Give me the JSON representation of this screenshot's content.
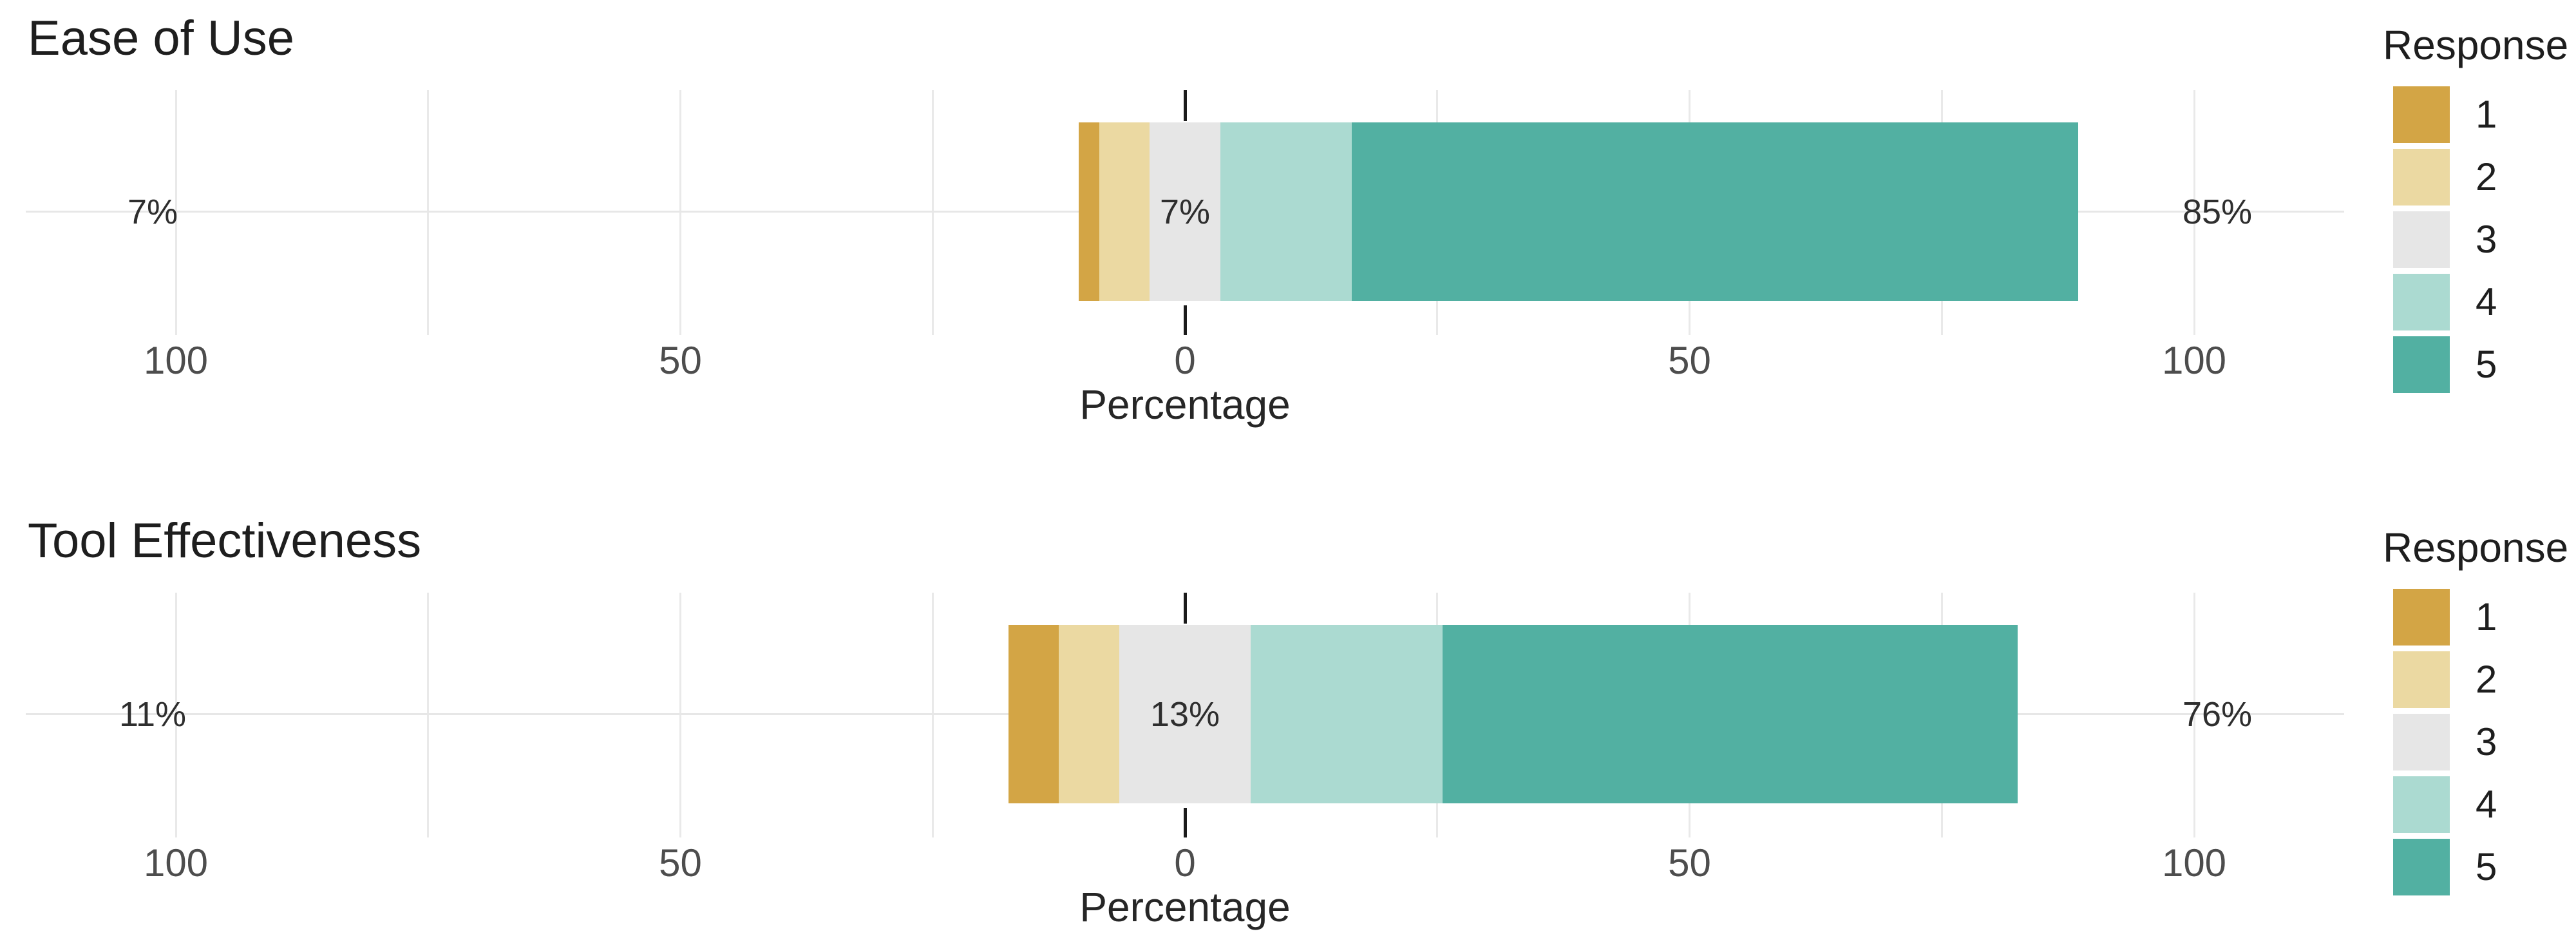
{
  "figure": {
    "background": "#ffffff",
    "gridline_color": "#e8e8e8",
    "zero_line_color": "#1b1b1b"
  },
  "legend": {
    "title": "Response",
    "items": [
      {
        "label": "1",
        "color": "#d3a545"
      },
      {
        "label": "2",
        "color": "#ebd9a2"
      },
      {
        "label": "3",
        "color": "#e6e6e6"
      },
      {
        "label": "4",
        "color": "#abdad1"
      },
      {
        "label": "5",
        "color": "#52b0a2"
      }
    ]
  },
  "charts": [
    {
      "title": "Ease of Use",
      "xlabel": "Percentage",
      "x_tick_labels": [
        "100",
        "50",
        "0",
        "50",
        "100"
      ],
      "x_tick_values": [
        -100,
        -50,
        0,
        50,
        100
      ],
      "left_label": "7%",
      "center_label": "7%",
      "right_label": "85%",
      "segments": [
        {
          "response": "1",
          "value": 2
        },
        {
          "response": "2",
          "value": 5
        },
        {
          "response": "3",
          "value": 7
        },
        {
          "response": "4",
          "value": 13
        },
        {
          "response": "5",
          "value": 72
        }
      ]
    },
    {
      "title": "Tool Effectiveness",
      "xlabel": "Percentage",
      "x_tick_labels": [
        "100",
        "50",
        "0",
        "50",
        "100"
      ],
      "x_tick_values": [
        -100,
        -50,
        0,
        50,
        100
      ],
      "left_label": "11%",
      "center_label": "13%",
      "right_label": "76%",
      "segments": [
        {
          "response": "1",
          "value": 5
        },
        {
          "response": "2",
          "value": 6
        },
        {
          "response": "3",
          "value": 13
        },
        {
          "response": "4",
          "value": 19
        },
        {
          "response": "5",
          "value": 57
        }
      ]
    }
  ],
  "chart_data": [
    {
      "type": "bar",
      "subtype": "diverging-stacked-likert-horizontal",
      "title": "Ease of Use",
      "xlabel": "Percentage",
      "legend_title": "Response",
      "categories": [
        "1",
        "2",
        "3",
        "4",
        "5"
      ],
      "values": [
        2,
        5,
        7,
        13,
        72
      ],
      "x_tick_labels": [
        "100",
        "50",
        "0",
        "50",
        "100"
      ],
      "x_tick_values": [
        -100,
        -50,
        0,
        50,
        100
      ],
      "xlim": [
        -115,
        115
      ],
      "grid": "on",
      "legend_position": "right",
      "centering": "neutral-category-midpoint-at-zero",
      "annotations": {
        "negative_share": "7%",
        "neutral_share": "7%",
        "positive_share": "85%"
      }
    },
    {
      "type": "bar",
      "subtype": "diverging-stacked-likert-horizontal",
      "title": "Tool Effectiveness",
      "xlabel": "Percentage",
      "legend_title": "Response",
      "categories": [
        "1",
        "2",
        "3",
        "4",
        "5"
      ],
      "values": [
        5,
        6,
        13,
        19,
        57
      ],
      "x_tick_labels": [
        "100",
        "50",
        "0",
        "50",
        "100"
      ],
      "x_tick_values": [
        -100,
        -50,
        0,
        50,
        100
      ],
      "xlim": [
        -115,
        115
      ],
      "grid": "on",
      "legend_position": "right",
      "centering": "neutral-category-midpoint-at-zero",
      "annotations": {
        "negative_share": "11%",
        "neutral_share": "13%",
        "positive_share": "76%"
      }
    }
  ]
}
